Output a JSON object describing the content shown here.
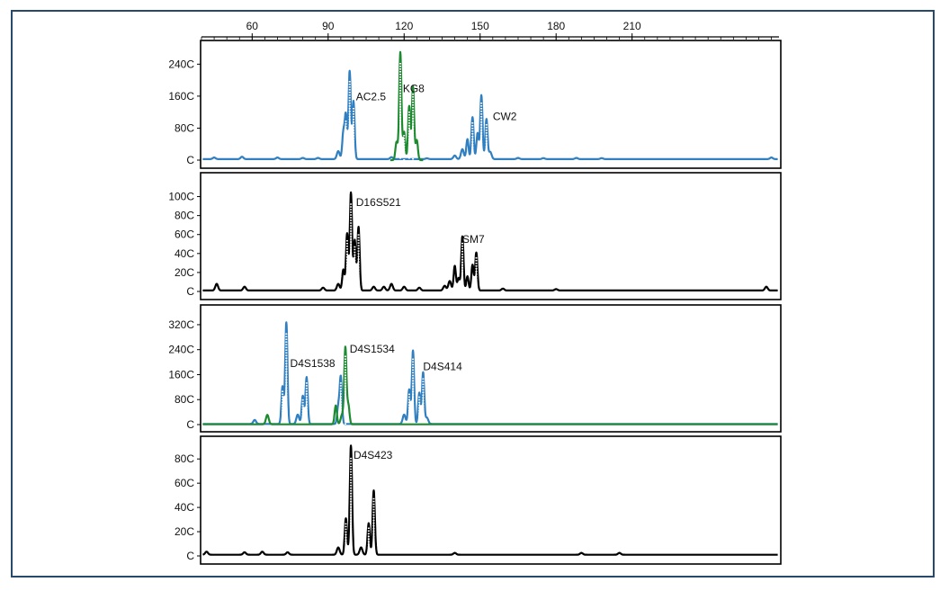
{
  "colors": {
    "frame": "#27496d",
    "blue": "#2f7fc1",
    "green": "#1c8a2e",
    "black": "#000000"
  },
  "chart_data": {
    "type": "line",
    "title": "",
    "xlabel": "",
    "x_axis": {
      "min": 40,
      "max": 268,
      "ticks": [
        60,
        90,
        120,
        150,
        180,
        210
      ],
      "tick_labels": [
        "60",
        "90",
        "120",
        "150",
        "180",
        "210"
      ]
    },
    "panels": [
      {
        "ymax": 2700,
        "yticks": [
          0,
          800,
          1600,
          2400
        ],
        "ytick_labels": [
          "C",
          "80C",
          "160C",
          "240C"
        ],
        "series": [
          {
            "color": "blue",
            "baseline": 25,
            "peaks": [
              [
                45,
                40
              ],
              [
                56,
                60
              ],
              [
                70,
                40
              ],
              [
                80,
                30
              ],
              [
                86,
                30
              ],
              [
                94,
                200
              ],
              [
                96,
                650
              ],
              [
                97,
                1100
              ],
              [
                98.5,
                2200
              ],
              [
                100,
                1450
              ],
              [
                115,
                50
              ],
              [
                129,
                20
              ],
              [
                140,
                90
              ],
              [
                143,
                250
              ],
              [
                145,
                500
              ],
              [
                147,
                1050
              ],
              [
                149,
                650
              ],
              [
                150.5,
                1600
              ],
              [
                152.5,
                1000
              ],
              [
                154,
                180
              ],
              [
                165,
                30
              ],
              [
                175,
                25
              ],
              [
                188,
                30
              ],
              [
                198,
                25
              ],
              [
                265,
                40
              ]
            ]
          },
          {
            "color": "green",
            "peaks": [
              [
                117,
                450
              ],
              [
                118.5,
                2700
              ],
              [
                120,
                700
              ],
              [
                122,
                1350
              ],
              [
                123.5,
                1850
              ],
              [
                125,
                500
              ]
            ]
          }
        ],
        "labels": [
          {
            "text": "AC2.5",
            "x": 101,
            "y": 1500
          },
          {
            "text": "KG8",
            "x": 119.5,
            "y": 1700
          },
          {
            "text": "CW2",
            "x": 155,
            "y": 1000
          }
        ]
      },
      {
        "ymax": 1100,
        "yticks": [
          0,
          200,
          400,
          600,
          800,
          1000
        ],
        "ytick_labels": [
          "C",
          "20C",
          "40C",
          "60C",
          "80C",
          "100C"
        ],
        "series": [
          {
            "color": "black",
            "baseline": 10,
            "peaks": [
              [
                46,
                70
              ],
              [
                57,
                40
              ],
              [
                88,
                30
              ],
              [
                94,
                70
              ],
              [
                96,
                220
              ],
              [
                97.5,
                600
              ],
              [
                99,
                1030
              ],
              [
                100.5,
                530
              ],
              [
                102,
                670
              ],
              [
                108,
                40
              ],
              [
                112,
                40
              ],
              [
                115,
                70
              ],
              [
                120,
                40
              ],
              [
                126,
                30
              ],
              [
                136,
                50
              ],
              [
                138,
                100
              ],
              [
                140,
                260
              ],
              [
                141.5,
                130
              ],
              [
                143,
                570
              ],
              [
                145,
                150
              ],
              [
                147,
                270
              ],
              [
                148.5,
                400
              ],
              [
                159,
                20
              ],
              [
                180,
                15
              ],
              [
                263,
                40
              ]
            ]
          }
        ],
        "labels": [
          {
            "text": "D16S521",
            "x": 101,
            "y": 900
          },
          {
            "text": "SM7",
            "x": 143,
            "y": 510
          }
        ]
      },
      {
        "ymax": 3400,
        "yticks": [
          0,
          800,
          1600,
          2400,
          3200
        ],
        "ytick_labels": [
          "C",
          "80C",
          "160C",
          "240C",
          "320C"
        ],
        "series": [
          {
            "color": "blue",
            "baseline": 20,
            "peaks": [
              [
                61,
                130
              ],
              [
                72,
                1200
              ],
              [
                73.5,
                3250
              ],
              [
                78,
                300
              ],
              [
                80,
                900
              ],
              [
                81.5,
                1500
              ],
              [
                94,
                550
              ],
              [
                95,
                1500
              ],
              [
                120,
                300
              ],
              [
                122,
                1100
              ],
              [
                123.5,
                2350
              ],
              [
                126,
                1000
              ],
              [
                127.5,
                1650
              ],
              [
                129,
                200
              ]
            ]
          },
          {
            "color": "green",
            "baseline": 10,
            "peaks": [
              [
                66,
                300
              ],
              [
                93,
                600
              ],
              [
                95.5,
                300
              ],
              [
                96.8,
                2450
              ],
              [
                98,
                600
              ]
            ]
          }
        ],
        "labels": [
          {
            "text": "D4S1538",
            "x": 75,
            "y": 1850
          },
          {
            "text": "D4S1534",
            "x": 98.5,
            "y": 2300
          },
          {
            "text": "D4S414",
            "x": 127.5,
            "y": 1750
          }
        ]
      },
      {
        "ymax": 950,
        "yticks": [
          0,
          200,
          400,
          600,
          800
        ],
        "ytick_labels": [
          "C",
          "20C",
          "40C",
          "60C",
          "80C"
        ],
        "series": [
          {
            "color": "black",
            "baseline": 10,
            "peaks": [
              [
                42,
                25
              ],
              [
                57,
                20
              ],
              [
                64,
                25
              ],
              [
                74,
                20
              ],
              [
                94,
                60
              ],
              [
                97,
                300
              ],
              [
                99,
                900
              ],
              [
                103,
                60
              ],
              [
                106,
                260
              ],
              [
                108,
                530
              ],
              [
                140,
                15
              ],
              [
                190,
                15
              ],
              [
                205,
                15
              ]
            ]
          }
        ],
        "labels": [
          {
            "text": "D4S423",
            "x": 100,
            "y": 800
          }
        ]
      }
    ]
  }
}
